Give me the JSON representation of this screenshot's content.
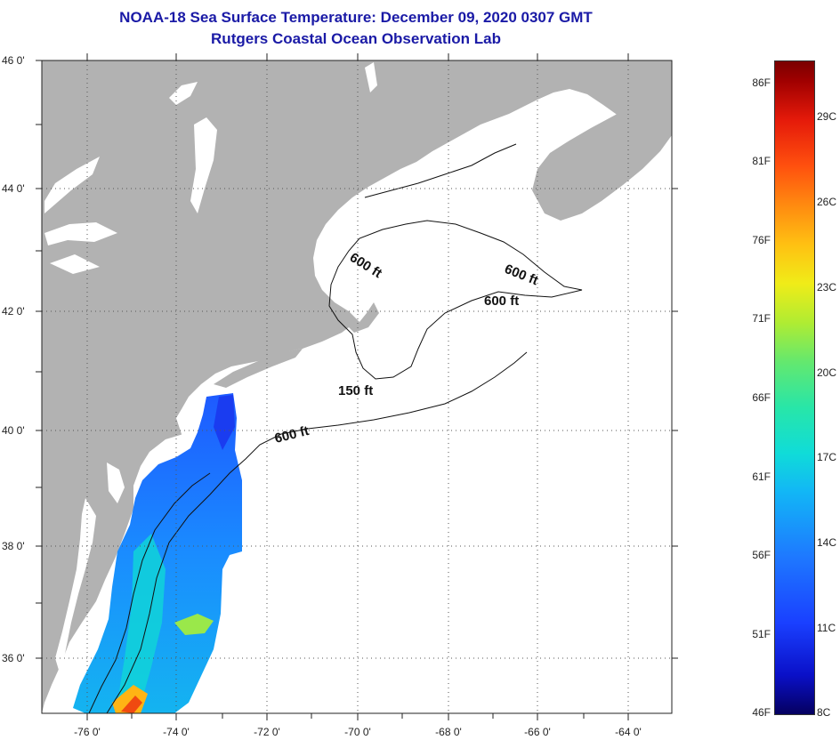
{
  "header": {
    "title": "NOAA-18 Sea Surface Temperature:  December 09, 2020 0307 GMT",
    "subtitle": "Rutgers Coastal Ocean Observation Lab"
  },
  "map": {
    "lat_labels": [
      "46 0'",
      "44 0'",
      "42 0'",
      "40 0'",
      "38 0'",
      "36 0'"
    ],
    "lon_labels": [
      "-76 0'",
      "-74 0'",
      "-72 0'",
      "-70 0'",
      "-68 0'",
      "-66 0'",
      "-64 0'"
    ],
    "contour_labels": [
      "600 ft",
      "600 ft",
      "600 ft",
      "150 ft",
      "600 ft"
    ],
    "colors": {
      "land": "#b2b2b2",
      "water": "#ffffff",
      "cloud": "#ffffff"
    }
  },
  "colorbar": {
    "fahrenheit": [
      "86F",
      "81F",
      "76F",
      "71F",
      "66F",
      "61F",
      "56F",
      "51F",
      "46F"
    ],
    "celsius": [
      "29C",
      "26C",
      "23C",
      "20C",
      "17C",
      "14C",
      "11C",
      "8C"
    ]
  }
}
